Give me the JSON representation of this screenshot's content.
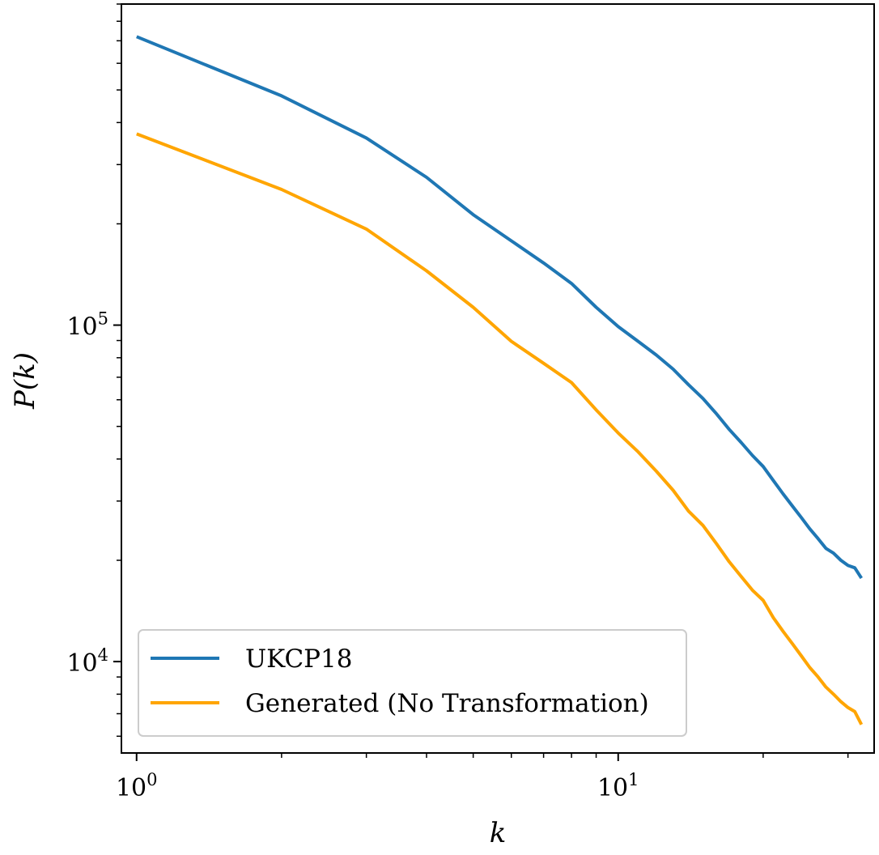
{
  "chart_data": {
    "type": "line",
    "xscale": "log",
    "yscale": "log",
    "xlabel": "k",
    "ylabel": "P(k)",
    "xlim": [
      0.93,
      34.0
    ],
    "ylim": [
      5350,
      900000
    ],
    "xticks": [
      {
        "base": "10",
        "exp": "0",
        "value": 1
      },
      {
        "base": "10",
        "exp": "1",
        "value": 10
      }
    ],
    "yticks": [
      {
        "base": "10",
        "exp": "4",
        "value": 10000
      },
      {
        "base": "10",
        "exp": "5",
        "value": 100000
      }
    ],
    "grid": false,
    "legend_position": "lower-left",
    "x": [
      1,
      2,
      3,
      4,
      5,
      6,
      7,
      8,
      9,
      10,
      11,
      12,
      13,
      14,
      15,
      16,
      17,
      18,
      19,
      20,
      21,
      22,
      23,
      24,
      25,
      26,
      27,
      28,
      29,
      30,
      31,
      32
    ],
    "series": [
      {
        "name": "UKCP18",
        "color": "#1f77b4",
        "values": [
          720000,
          480000,
          360000,
          275000,
          213000,
          178000,
          153000,
          133000,
          113000,
          99000,
          89500,
          81500,
          74000,
          66500,
          60500,
          54500,
          49000,
          44800,
          41000,
          38000,
          34500,
          31500,
          29000,
          26800,
          24800,
          23200,
          21700,
          21000,
          20000,
          19300,
          19000,
          17700
        ]
      },
      {
        "name": "Generated (No Transformation)",
        "color": "#ffa500",
        "values": [
          370000,
          253000,
          193000,
          145000,
          113000,
          89500,
          77000,
          67500,
          56000,
          47800,
          42000,
          36800,
          32300,
          28000,
          25400,
          22400,
          19800,
          17900,
          16300,
          15200,
          13500,
          12300,
          11300,
          10400,
          9600,
          9000,
          8400,
          8000,
          7600,
          7300,
          7100,
          6500
        ]
      }
    ]
  }
}
